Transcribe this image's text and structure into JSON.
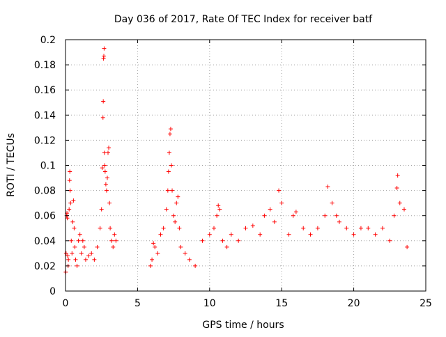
{
  "chart_data": {
    "type": "scatter",
    "title": "Day 036 of 2017, Rate Of TEC Index for receiver batf",
    "xlabel": "GPS time / hours",
    "ylabel": "ROTI / TECUs",
    "xlim": [
      0,
      25
    ],
    "ylim": [
      0,
      0.2
    ],
    "x_ticks": [
      "0",
      "5",
      "10",
      "15",
      "20",
      "25"
    ],
    "y_ticks": [
      "0",
      "0.02",
      "0.04",
      "0.06",
      "0.08",
      "0.1",
      "0.12",
      "0.14",
      "0.16",
      "0.18",
      "0.2"
    ],
    "grid": true,
    "marker": "+",
    "color": "#ff0000",
    "series": [
      {
        "values": [
          [
            0.02,
            0.015
          ],
          [
            0.04,
            0.03
          ],
          [
            0.08,
            0.06
          ],
          [
            0.1,
            0.062
          ],
          [
            0.12,
            0.058
          ],
          [
            0.15,
            0.028
          ],
          [
            0.18,
            0.02
          ],
          [
            0.2,
            0.025
          ],
          [
            0.25,
            0.065
          ],
          [
            0.28,
            0.088
          ],
          [
            0.3,
            0.095
          ],
          [
            0.32,
            0.08
          ],
          [
            0.35,
            0.07
          ],
          [
            0.4,
            0.04
          ],
          [
            0.45,
            0.03
          ],
          [
            0.5,
            0.055
          ],
          [
            0.55,
            0.072
          ],
          [
            0.6,
            0.05
          ],
          [
            0.65,
            0.035
          ],
          [
            0.7,
            0.025
          ],
          [
            0.8,
            0.02
          ],
          [
            0.9,
            0.04
          ],
          [
            1.0,
            0.045
          ],
          [
            1.1,
            0.03
          ],
          [
            1.2,
            0.04
          ],
          [
            1.3,
            0.035
          ],
          [
            1.4,
            0.025
          ],
          [
            1.6,
            0.028
          ],
          [
            1.8,
            0.03
          ],
          [
            2.0,
            0.025
          ],
          [
            2.2,
            0.035
          ],
          [
            2.4,
            0.05
          ],
          [
            2.5,
            0.065
          ],
          [
            2.55,
            0.098
          ],
          [
            2.6,
            0.138
          ],
          [
            2.62,
            0.151
          ],
          [
            2.64,
            0.185
          ],
          [
            2.66,
            0.187
          ],
          [
            2.68,
            0.193
          ],
          [
            2.7,
            0.11
          ],
          [
            2.72,
            0.1
          ],
          [
            2.75,
            0.095
          ],
          [
            2.8,
            0.085
          ],
          [
            2.85,
            0.08
          ],
          [
            2.9,
            0.09
          ],
          [
            2.95,
            0.11
          ],
          [
            3.0,
            0.114
          ],
          [
            3.05,
            0.07
          ],
          [
            3.1,
            0.05
          ],
          [
            3.2,
            0.04
          ],
          [
            3.3,
            0.035
          ],
          [
            3.4,
            0.045
          ],
          [
            3.5,
            0.04
          ],
          [
            5.9,
            0.02
          ],
          [
            6.0,
            0.025
          ],
          [
            6.1,
            0.038
          ],
          [
            6.2,
            0.035
          ],
          [
            6.4,
            0.03
          ],
          [
            6.6,
            0.045
          ],
          [
            6.8,
            0.05
          ],
          [
            7.0,
            0.065
          ],
          [
            7.1,
            0.08
          ],
          [
            7.15,
            0.095
          ],
          [
            7.2,
            0.11
          ],
          [
            7.25,
            0.125
          ],
          [
            7.3,
            0.129
          ],
          [
            7.35,
            0.1
          ],
          [
            7.4,
            0.08
          ],
          [
            7.5,
            0.06
          ],
          [
            7.6,
            0.055
          ],
          [
            7.7,
            0.07
          ],
          [
            7.8,
            0.075
          ],
          [
            7.9,
            0.05
          ],
          [
            8.0,
            0.035
          ],
          [
            8.3,
            0.03
          ],
          [
            8.6,
            0.025
          ],
          [
            9.0,
            0.02
          ],
          [
            9.5,
            0.04
          ],
          [
            10.0,
            0.045
          ],
          [
            10.3,
            0.05
          ],
          [
            10.5,
            0.06
          ],
          [
            10.6,
            0.068
          ],
          [
            10.7,
            0.065
          ],
          [
            10.9,
            0.04
          ],
          [
            11.2,
            0.035
          ],
          [
            11.5,
            0.045
          ],
          [
            12.0,
            0.04
          ],
          [
            12.5,
            0.05
          ],
          [
            13.0,
            0.052
          ],
          [
            13.5,
            0.045
          ],
          [
            13.8,
            0.06
          ],
          [
            14.2,
            0.065
          ],
          [
            14.5,
            0.055
          ],
          [
            14.8,
            0.08
          ],
          [
            15.0,
            0.07
          ],
          [
            15.5,
            0.045
          ],
          [
            15.8,
            0.06
          ],
          [
            16.0,
            0.063
          ],
          [
            16.5,
            0.05
          ],
          [
            17.0,
            0.045
          ],
          [
            17.5,
            0.05
          ],
          [
            18.0,
            0.06
          ],
          [
            18.2,
            0.083
          ],
          [
            18.5,
            0.07
          ],
          [
            18.8,
            0.06
          ],
          [
            19.0,
            0.055
          ],
          [
            19.5,
            0.05
          ],
          [
            20.0,
            0.045
          ],
          [
            20.5,
            0.05
          ],
          [
            21.0,
            0.05
          ],
          [
            21.5,
            0.045
          ],
          [
            22.0,
            0.05
          ],
          [
            22.5,
            0.04
          ],
          [
            22.8,
            0.06
          ],
          [
            23.0,
            0.082
          ],
          [
            23.05,
            0.092
          ],
          [
            23.2,
            0.07
          ],
          [
            23.5,
            0.065
          ],
          [
            23.7,
            0.035
          ]
        ]
      }
    ]
  }
}
